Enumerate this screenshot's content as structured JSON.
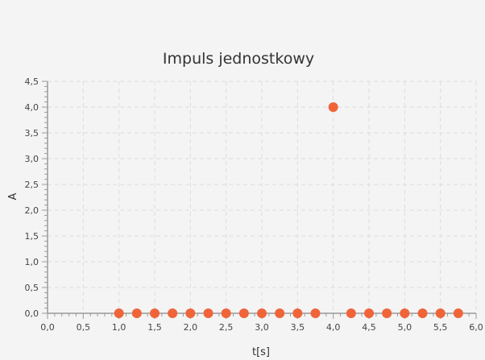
{
  "chart_data": {
    "type": "scatter",
    "title": "Impuls jednostkowy",
    "xlabel": "t[s]",
    "ylabel": "A",
    "xlim": [
      0,
      6
    ],
    "ylim": [
      0,
      4.5
    ],
    "grid": true,
    "legend": "none",
    "x_ticks": [
      "0,0",
      "0,5",
      "1,0",
      "1,5",
      "2,0",
      "2,5",
      "3,0",
      "3,5",
      "4,0",
      "4,5",
      "5,0",
      "5,5",
      "6,0"
    ],
    "y_ticks": [
      "0,0",
      "0,5",
      "1,0",
      "1,5",
      "2,0",
      "2,5",
      "3,0",
      "3,5",
      "4,0",
      "4,5"
    ],
    "colors": {
      "point": "#f0643a",
      "grid": "#dcdcdc",
      "axis": "#9a9a9a",
      "background": "#f4f4f4"
    },
    "series": [
      {
        "x": [
          1.0,
          1.25,
          1.5,
          1.75,
          2.0,
          2.25,
          2.5,
          2.75,
          3.0,
          3.25,
          3.5,
          3.75,
          4.0,
          4.25,
          4.5,
          4.75,
          5.0,
          5.25,
          5.5,
          5.75
        ],
        "y": [
          0,
          0,
          0,
          0,
          0,
          0,
          0,
          0,
          0,
          0,
          0,
          0,
          4.0,
          0,
          0,
          0,
          0,
          0,
          0,
          0
        ]
      }
    ]
  }
}
